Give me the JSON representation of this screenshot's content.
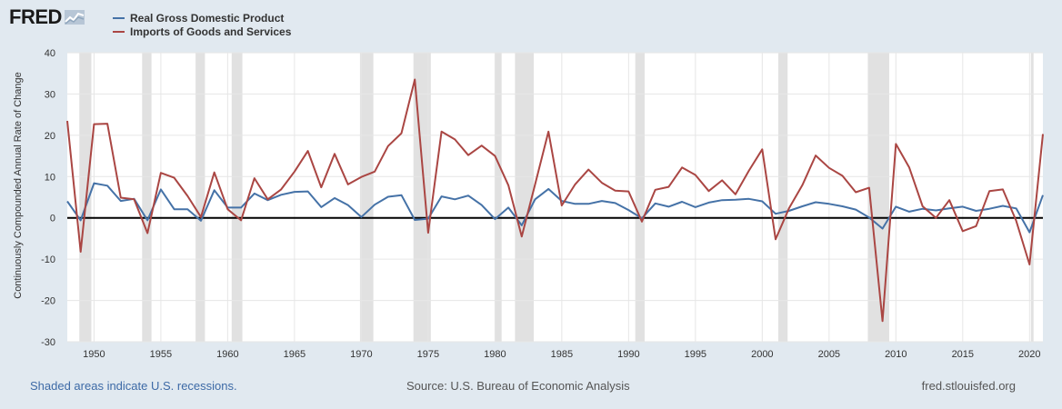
{
  "header": {
    "logo_text": "FRED",
    "legend": [
      {
        "label": "Real Gross Domestic Product",
        "color": "#4572a7"
      },
      {
        "label": "Imports of Goods and Services",
        "color": "#aa4643"
      }
    ]
  },
  "footer": {
    "recession_note": "Shaded areas indicate U.S. recessions.",
    "source": "Source: U.S. Bureau of Economic Analysis",
    "site": "fred.stlouisfed.org"
  },
  "chart_data": {
    "type": "line",
    "ylabel": "Continuously Compounded Annual Rate of Change",
    "xlim": [
      1948,
      2021
    ],
    "ylim": [
      -30,
      40
    ],
    "yticks": [
      -30,
      -20,
      -10,
      0,
      10,
      20,
      30,
      40
    ],
    "xticks": [
      1950,
      1955,
      1960,
      1965,
      1970,
      1975,
      1980,
      1985,
      1990,
      1995,
      2000,
      2005,
      2010,
      2015,
      2020
    ],
    "grid": true,
    "recessions": [
      [
        1948.9,
        1949.8
      ],
      [
        1953.6,
        1954.3
      ],
      [
        1957.6,
        1958.3
      ],
      [
        1960.3,
        1961.1
      ],
      [
        1969.9,
        1970.9
      ],
      [
        1973.9,
        1975.2
      ],
      [
        1980.0,
        1980.5
      ],
      [
        1981.5,
        1982.9
      ],
      [
        1990.5,
        1991.2
      ],
      [
        2001.2,
        2001.9
      ],
      [
        2007.9,
        2009.5
      ],
      [
        2020.1,
        2020.3
      ]
    ],
    "x": [
      1948,
      1949,
      1950,
      1951,
      1952,
      1953,
      1954,
      1955,
      1956,
      1957,
      1958,
      1959,
      1960,
      1961,
      1962,
      1963,
      1964,
      1965,
      1966,
      1967,
      1968,
      1969,
      1970,
      1971,
      1972,
      1973,
      1974,
      1975,
      1976,
      1977,
      1978,
      1979,
      1980,
      1981,
      1982,
      1983,
      1984,
      1985,
      1986,
      1987,
      1988,
      1989,
      1990,
      1991,
      1992,
      1993,
      1994,
      1995,
      1996,
      1997,
      1998,
      1999,
      2000,
      2001,
      2002,
      2003,
      2004,
      2005,
      2006,
      2007,
      2008,
      2009,
      2010,
      2011,
      2012,
      2013,
      2014,
      2015,
      2016,
      2017,
      2018,
      2019,
      2020,
      2021
    ],
    "series": [
      {
        "name": "Real Gross Domestic Product",
        "color": "#4572a7",
        "values": [
          4.0,
          -0.6,
          8.4,
          7.8,
          4.1,
          4.6,
          -0.6,
          6.9,
          2.1,
          2.1,
          -0.7,
          6.7,
          2.5,
          2.5,
          5.9,
          4.3,
          5.6,
          6.3,
          6.4,
          2.6,
          4.8,
          3.1,
          0.2,
          3.2,
          5.1,
          5.5,
          -0.5,
          -0.2,
          5.2,
          4.5,
          5.4,
          3.1,
          -0.3,
          2.5,
          -1.8,
          4.5,
          7.0,
          4.1,
          3.4,
          3.4,
          4.1,
          3.6,
          1.9,
          -0.1,
          3.5,
          2.7,
          3.9,
          2.6,
          3.7,
          4.3,
          4.4,
          4.6,
          4.0,
          1.0,
          1.7,
          2.8,
          3.8,
          3.4,
          2.8,
          2.0,
          0.1,
          -2.6,
          2.7,
          1.5,
          2.2,
          1.8,
          2.3,
          2.7,
          1.7,
          2.2,
          2.9,
          2.3,
          -3.5,
          5.5
        ]
      },
      {
        "name": "Imports of Goods and Services",
        "color": "#aa4643",
        "values": [
          23.5,
          -8.2,
          22.7,
          22.8,
          4.9,
          4.5,
          -3.7,
          10.9,
          9.7,
          5.3,
          0.2,
          11.0,
          2.1,
          -0.6,
          9.6,
          4.5,
          6.9,
          11.2,
          16.2,
          7.4,
          15.5,
          8.1,
          9.9,
          11.2,
          17.4,
          20.5,
          33.5,
          -3.6,
          20.9,
          19.0,
          15.2,
          17.5,
          15.0,
          7.9,
          -4.5,
          8.1,
          20.9,
          3.0,
          8.1,
          11.7,
          8.5,
          6.6,
          6.4,
          -0.9,
          6.8,
          7.5,
          12.2,
          10.4,
          6.5,
          9.1,
          5.7,
          11.4,
          16.6,
          -5.2,
          2.3,
          7.9,
          15.1,
          12.1,
          10.2,
          6.2,
          7.3,
          -25.0,
          17.9,
          12.2,
          2.8,
          0.0,
          4.3,
          -3.2,
          -2.0,
          6.5,
          6.9,
          -0.7,
          -11.3,
          20.3
        ]
      }
    ]
  }
}
